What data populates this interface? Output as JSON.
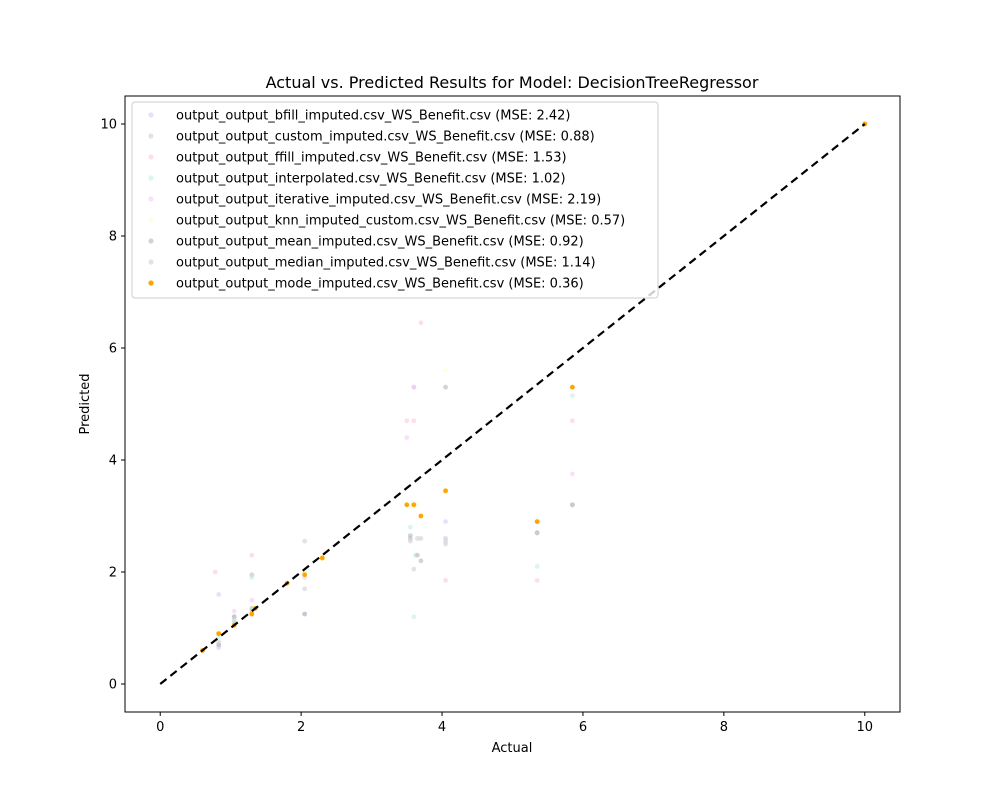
{
  "chart_data": {
    "type": "scatter",
    "title": "Actual vs. Predicted Results for Model: DecisionTreeRegressor",
    "xlabel": "Actual",
    "ylabel": "Predicted",
    "xlim": [
      -0.5,
      10.5
    ],
    "ylim": [
      -0.5,
      10.5
    ],
    "xticks": [
      "0",
      "2",
      "4",
      "6",
      "8",
      "10"
    ],
    "yticks": [
      "0",
      "2",
      "4",
      "6",
      "8",
      "10"
    ],
    "grid": false,
    "legend_position": "top-left",
    "reference_line": {
      "from": [
        0,
        0
      ],
      "to": [
        10,
        10
      ],
      "style": "dashed",
      "color": "#000000"
    },
    "series": [
      {
        "name": "output_output_bfill_imputed.csv_WS_Benefit.csv (MSE: 2.42)",
        "color": "#c9c4ff",
        "opacity": 0.5,
        "points": [
          [
            0.83,
            1.6
          ],
          [
            0.83,
            0.65
          ],
          [
            1.05,
            1.2
          ],
          [
            1.3,
            1.95
          ],
          [
            2.05,
            1.25
          ],
          [
            3.55,
            2.6
          ],
          [
            3.6,
            5.3
          ],
          [
            4.05,
            2.9
          ],
          [
            5.35,
            2.7
          ],
          [
            5.85,
            3.2
          ],
          [
            10,
            10
          ]
        ]
      },
      {
        "name": "output_output_custom_imputed.csv_WS_Benefit.csv (MSE: 0.88)",
        "color": "#c8c8c8",
        "opacity": 0.5,
        "points": [
          [
            0.83,
            0.7
          ],
          [
            1.05,
            1.1
          ],
          [
            1.3,
            1.3
          ],
          [
            2.05,
            1.7
          ],
          [
            3.55,
            2.6
          ],
          [
            3.6,
            2.05
          ],
          [
            3.7,
            2.6
          ],
          [
            4.05,
            2.5
          ],
          [
            5.35,
            2.7
          ],
          [
            5.85,
            3.2
          ],
          [
            10,
            10
          ]
        ]
      },
      {
        "name": "output_output_ffill_imputed.csv_WS_Benefit.csv (MSE: 1.53)",
        "color": "#ffc0cb",
        "opacity": 0.5,
        "points": [
          [
            0.78,
            2.0
          ],
          [
            1.3,
            2.3
          ],
          [
            3.5,
            4.7
          ],
          [
            3.6,
            4.7
          ],
          [
            3.7,
            6.45
          ],
          [
            4.05,
            1.85
          ],
          [
            5.35,
            1.85
          ],
          [
            5.85,
            4.7
          ],
          [
            10,
            10
          ]
        ]
      },
      {
        "name": "output_output_interpolated.csv_WS_Benefit.csv (MSE: 1.02)",
        "color": "#b0f0e0",
        "opacity": 0.5,
        "points": [
          [
            0.83,
            0.85
          ],
          [
            1.05,
            1.1
          ],
          [
            1.3,
            1.9
          ],
          [
            2.05,
            2.0
          ],
          [
            3.55,
            2.8
          ],
          [
            3.6,
            1.2
          ],
          [
            3.62,
            2.3
          ],
          [
            4.05,
            2.6
          ],
          [
            5.35,
            2.1
          ],
          [
            5.85,
            5.15
          ],
          [
            10,
            10
          ]
        ]
      },
      {
        "name": "output_output_iterative_imputed.csv_WS_Benefit.csv (MSE: 2.19)",
        "color": "#f5c0f5",
        "opacity": 0.5,
        "points": [
          [
            0.83,
            0.9
          ],
          [
            1.05,
            1.3
          ],
          [
            1.3,
            1.5
          ],
          [
            2.05,
            1.9
          ],
          [
            3.5,
            4.4
          ],
          [
            3.6,
            5.3
          ],
          [
            4.05,
            2.6
          ],
          [
            5.35,
            2.9
          ],
          [
            5.85,
            3.75
          ],
          [
            10,
            10
          ]
        ]
      },
      {
        "name": "output_output_knn_imputed_custom.csv_WS_Benefit.csv (MSE: 0.57)",
        "color": "#fdfdc8",
        "opacity": 0.5,
        "points": [
          [
            0.83,
            0.95
          ],
          [
            1.05,
            1.05
          ],
          [
            1.3,
            1.25
          ],
          [
            2.05,
            2.0
          ],
          [
            3.55,
            3.2
          ],
          [
            3.65,
            3.2
          ],
          [
            4.05,
            5.6
          ],
          [
            5.35,
            2.9
          ],
          [
            5.85,
            5.3
          ],
          [
            10,
            10
          ]
        ]
      },
      {
        "name": "output_output_mean_imputed.csv_WS_Benefit.csv (MSE: 0.92)",
        "color": "#b8b8b8",
        "opacity": 0.6,
        "points": [
          [
            0.83,
            0.7
          ],
          [
            1.05,
            1.2
          ],
          [
            1.3,
            1.35
          ],
          [
            2.05,
            1.25
          ],
          [
            3.55,
            2.65
          ],
          [
            3.65,
            2.3
          ],
          [
            3.7,
            2.2
          ],
          [
            4.05,
            5.3
          ],
          [
            5.35,
            2.7
          ],
          [
            5.85,
            3.2
          ],
          [
            10,
            10
          ]
        ]
      },
      {
        "name": "output_output_median_imputed.csv_WS_Benefit.csv (MSE: 1.14)",
        "color": "#d0d0d0",
        "opacity": 0.6,
        "points": [
          [
            0.83,
            0.75
          ],
          [
            1.05,
            1.15
          ],
          [
            1.3,
            1.95
          ],
          [
            2.05,
            2.55
          ],
          [
            3.55,
            2.55
          ],
          [
            3.65,
            2.6
          ],
          [
            4.05,
            2.55
          ],
          [
            5.35,
            2.7
          ],
          [
            5.85,
            3.2
          ],
          [
            10,
            10
          ]
        ]
      },
      {
        "name": "output_output_mode_imputed.csv_WS_Benefit.csv (MSE: 0.36)",
        "color": "#ffa500",
        "opacity": 1.0,
        "points": [
          [
            0.6,
            0.6
          ],
          [
            0.83,
            0.9
          ],
          [
            1.05,
            1.05
          ],
          [
            1.3,
            1.25
          ],
          [
            1.35,
            1.35
          ],
          [
            1.8,
            1.8
          ],
          [
            2.05,
            1.95
          ],
          [
            2.3,
            2.25
          ],
          [
            3.5,
            3.2
          ],
          [
            3.6,
            3.2
          ],
          [
            3.7,
            3.0
          ],
          [
            4.05,
            3.45
          ],
          [
            5.35,
            2.9
          ],
          [
            5.85,
            5.3
          ],
          [
            10,
            10
          ]
        ]
      }
    ]
  }
}
